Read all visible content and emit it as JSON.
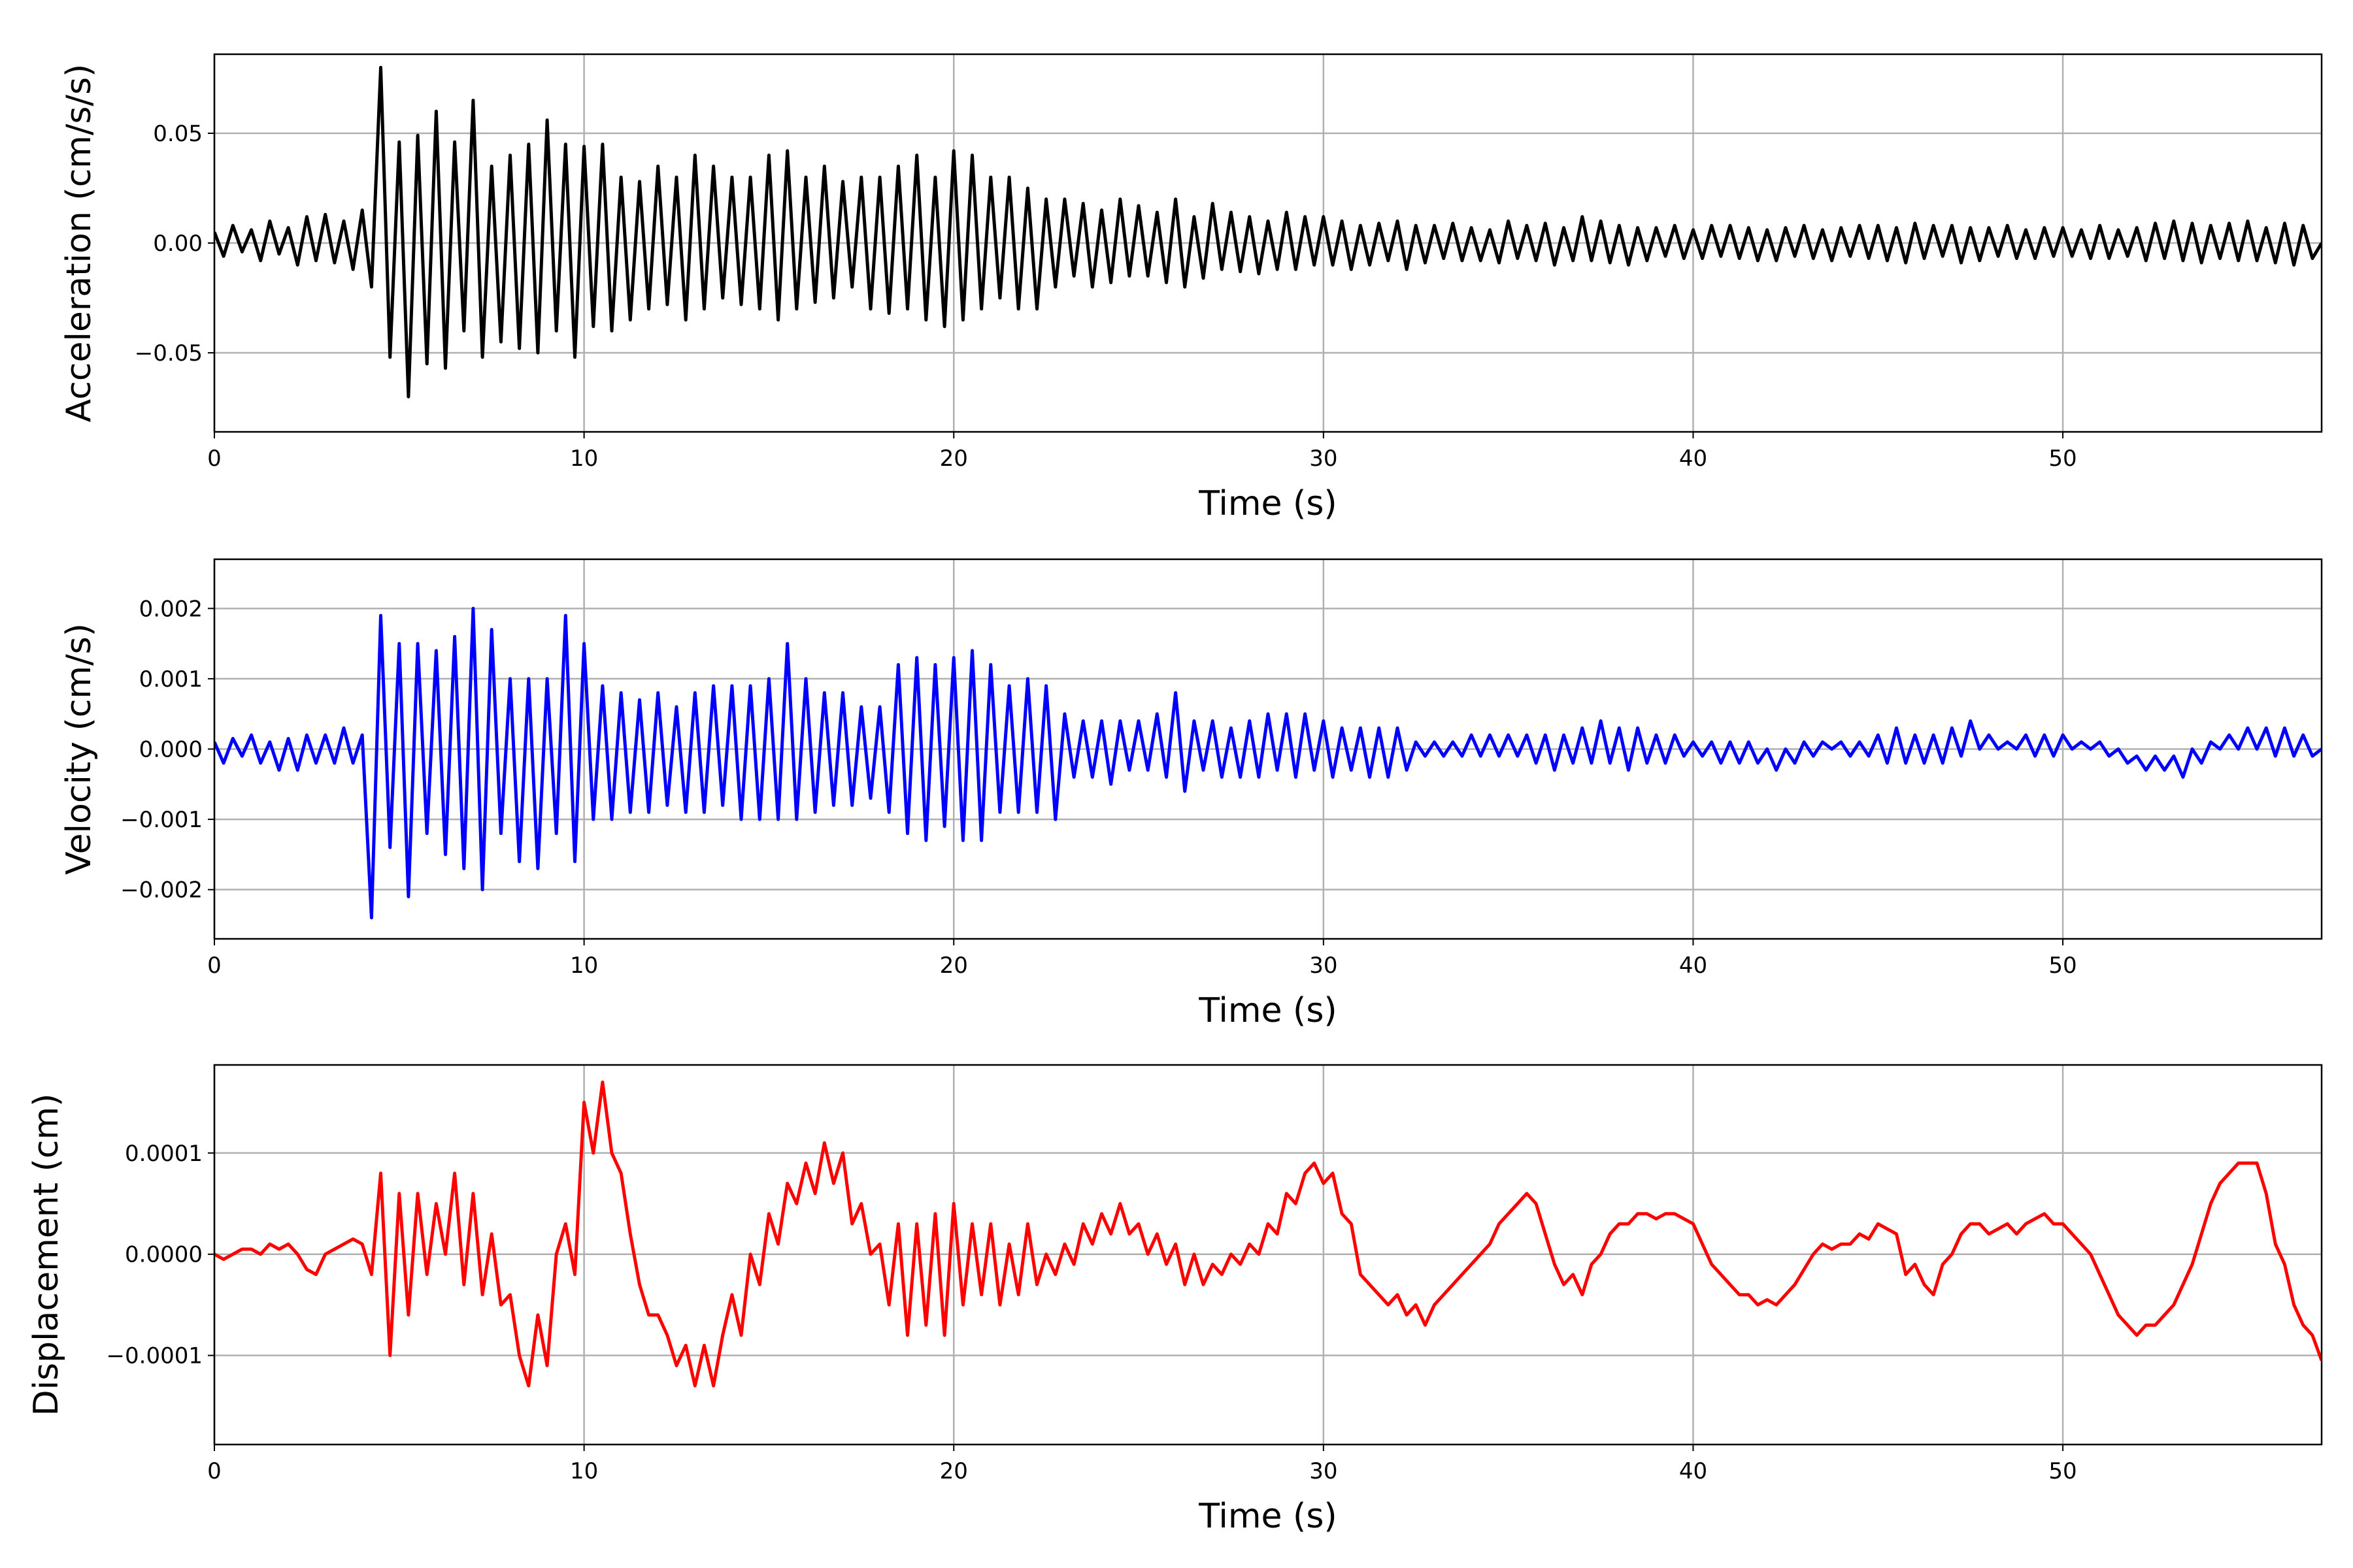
{
  "chart_data": [
    {
      "type": "line",
      "title": "",
      "xlabel": "Time (s)",
      "ylabel": "Acceleration (cm/s/s)",
      "color": "#000000",
      "xlim": [
        0,
        57
      ],
      "ylim": [
        -0.086,
        0.086
      ],
      "grid": true,
      "xticks": [
        0,
        10,
        20,
        30,
        40,
        50
      ],
      "xtick_labels": [
        "0",
        "10",
        "20",
        "30",
        "40",
        "50"
      ],
      "yticks": [
        -0.05,
        0,
        0.05
      ],
      "ytick_labels": [
        "−0.05",
        "0.00",
        "0.05"
      ],
      "t_start": 0,
      "dt": 0.25,
      "values": [
        0.005,
        -0.006,
        0.008,
        -0.004,
        0.006,
        -0.008,
        0.01,
        -0.005,
        0.007,
        -0.01,
        0.012,
        -0.008,
        0.013,
        -0.009,
        0.01,
        -0.012,
        0.015,
        -0.02,
        0.08,
        -0.052,
        0.046,
        -0.07,
        0.049,
        -0.055,
        0.06,
        -0.057,
        0.046,
        -0.04,
        0.065,
        -0.052,
        0.035,
        -0.045,
        0.04,
        -0.048,
        0.045,
        -0.05,
        0.056,
        -0.04,
        0.045,
        -0.052,
        0.044,
        -0.038,
        0.045,
        -0.04,
        0.03,
        -0.035,
        0.028,
        -0.03,
        0.035,
        -0.028,
        0.03,
        -0.035,
        0.04,
        -0.03,
        0.035,
        -0.025,
        0.03,
        -0.028,
        0.03,
        -0.03,
        0.04,
        -0.035,
        0.042,
        -0.03,
        0.03,
        -0.027,
        0.035,
        -0.025,
        0.028,
        -0.02,
        0.03,
        -0.03,
        0.03,
        -0.032,
        0.035,
        -0.03,
        0.04,
        -0.035,
        0.03,
        -0.038,
        0.042,
        -0.035,
        0.04,
        -0.03,
        0.03,
        -0.025,
        0.03,
        -0.03,
        0.025,
        -0.03,
        0.02,
        -0.02,
        0.02,
        -0.015,
        0.018,
        -0.02,
        0.015,
        -0.018,
        0.02,
        -0.015,
        0.017,
        -0.015,
        0.014,
        -0.018,
        0.02,
        -0.02,
        0.012,
        -0.016,
        0.018,
        -0.012,
        0.014,
        -0.013,
        0.012,
        -0.014,
        0.01,
        -0.012,
        0.014,
        -0.012,
        0.012,
        -0.01,
        0.012,
        -0.01,
        0.01,
        -0.012,
        0.008,
        -0.01,
        0.009,
        -0.008,
        0.01,
        -0.012,
        0.008,
        -0.009,
        0.008,
        -0.007,
        0.009,
        -0.008,
        0.007,
        -0.008,
        0.006,
        -0.009,
        0.01,
        -0.007,
        0.008,
        -0.008,
        0.009,
        -0.01,
        0.007,
        -0.008,
        0.012,
        -0.008,
        0.01,
        -0.009,
        0.008,
        -0.01,
        0.007,
        -0.008,
        0.007,
        -0.006,
        0.008,
        -0.007,
        0.006,
        -0.007,
        0.008,
        -0.006,
        0.008,
        -0.007,
        0.007,
        -0.008,
        0.006,
        -0.008,
        0.007,
        -0.006,
        0.008,
        -0.007,
        0.006,
        -0.008,
        0.007,
        -0.006,
        0.008,
        -0.007,
        0.008,
        -0.008,
        0.007,
        -0.009,
        0.009,
        -0.007,
        0.008,
        -0.006,
        0.008,
        -0.009,
        0.007,
        -0.008,
        0.007,
        -0.006,
        0.008,
        -0.007,
        0.006,
        -0.007,
        0.007,
        -0.006,
        0.007,
        -0.006,
        0.006,
        -0.007,
        0.008,
        -0.007,
        0.006,
        -0.006,
        0.007,
        -0.008,
        0.009,
        -0.007,
        0.01,
        -0.008,
        0.009,
        -0.009,
        0.008,
        -0.007,
        0.009,
        -0.008,
        0.01,
        -0.008,
        0.007,
        -0.009,
        0.009,
        -0.01,
        0.008,
        -0.007,
        0.0
      ]
    },
    {
      "type": "line",
      "title": "",
      "xlabel": "Time (s)",
      "ylabel": "Velocity (cm/s)",
      "color": "#0000ff",
      "xlim": [
        0,
        57
      ],
      "ylim": [
        -0.0027,
        0.0027
      ],
      "grid": true,
      "xticks": [
        0,
        10,
        20,
        30,
        40,
        50
      ],
      "xtick_labels": [
        "0",
        "10",
        "20",
        "30",
        "40",
        "50"
      ],
      "yticks": [
        -0.002,
        -0.001,
        0,
        0.001,
        0.002
      ],
      "ytick_labels": [
        "−0.002",
        "−0.001",
        "0.000",
        "0.001",
        "0.002"
      ],
      "t_start": 0,
      "dt": 0.25,
      "values": [
        0.0001,
        -0.0002,
        0.00015,
        -0.0001,
        0.0002,
        -0.0002,
        0.0001,
        -0.0003,
        0.00015,
        -0.0003,
        0.0002,
        -0.0002,
        0.0002,
        -0.0002,
        0.0003,
        -0.0002,
        0.0002,
        -0.0024,
        0.0019,
        -0.0014,
        0.0015,
        -0.0021,
        0.0015,
        -0.0012,
        0.0014,
        -0.0015,
        0.0016,
        -0.0017,
        0.002,
        -0.002,
        0.0017,
        -0.0012,
        0.001,
        -0.0016,
        0.001,
        -0.0017,
        0.001,
        -0.0012,
        0.0019,
        -0.0016,
        0.0015,
        -0.001,
        0.0009,
        -0.001,
        0.0008,
        -0.0009,
        0.0007,
        -0.0009,
        0.0008,
        -0.0008,
        0.0006,
        -0.0009,
        0.0008,
        -0.0009,
        0.0009,
        -0.0008,
        0.0009,
        -0.001,
        0.0009,
        -0.001,
        0.001,
        -0.001,
        0.0015,
        -0.001,
        0.001,
        -0.0009,
        0.0008,
        -0.0008,
        0.0008,
        -0.0008,
        0.0006,
        -0.0007,
        0.0006,
        -0.0009,
        0.0012,
        -0.0012,
        0.0013,
        -0.0013,
        0.0012,
        -0.0011,
        0.0013,
        -0.0013,
        0.0014,
        -0.0013,
        0.0012,
        -0.0009,
        0.0009,
        -0.0009,
        0.001,
        -0.0009,
        0.0009,
        -0.001,
        0.0005,
        -0.0004,
        0.0004,
        -0.0004,
        0.0004,
        -0.0005,
        0.0004,
        -0.0003,
        0.0004,
        -0.0003,
        0.0005,
        -0.0004,
        0.0008,
        -0.0006,
        0.0004,
        -0.0003,
        0.0004,
        -0.0004,
        0.0003,
        -0.0004,
        0.0004,
        -0.0004,
        0.0005,
        -0.0003,
        0.0005,
        -0.0004,
        0.0005,
        -0.0003,
        0.0004,
        -0.0004,
        0.0003,
        -0.0003,
        0.0003,
        -0.0004,
        0.0003,
        -0.0004,
        0.0003,
        -0.0003,
        0.0001,
        -0.0001,
        0.0001,
        -0.0001,
        0.0001,
        -0.0001,
        0.0002,
        -0.0001,
        0.0002,
        -0.0001,
        0.0002,
        -0.0001,
        0.0002,
        -0.0002,
        0.0002,
        -0.0003,
        0.0002,
        -0.0002,
        0.0003,
        -0.0002,
        0.0004,
        -0.0002,
        0.0003,
        -0.0003,
        0.0003,
        -0.0002,
        0.0002,
        -0.0002,
        0.0002,
        -0.0001,
        0.0001,
        -0.0001,
        0.0001,
        -0.0002,
        0.0001,
        -0.0002,
        0.0001,
        -0.0002,
        0.0,
        -0.0003,
        0.0,
        -0.0002,
        0.0001,
        -0.0001,
        0.0001,
        0.0,
        0.0001,
        -0.0001,
        0.0001,
        -0.0001,
        0.0002,
        -0.0002,
        0.0003,
        -0.0002,
        0.0002,
        -0.0002,
        0.0002,
        -0.0002,
        0.0003,
        -0.0001,
        0.0004,
        0.0,
        0.0002,
        0.0,
        0.0001,
        0.0,
        0.0002,
        -0.0001,
        0.0002,
        -0.0001,
        0.0002,
        0.0,
        0.0001,
        0.0,
        0.0001,
        -0.0001,
        0.0,
        -0.0002,
        -0.0001,
        -0.0003,
        -0.0001,
        -0.0003,
        -0.0001,
        -0.0004,
        0.0,
        -0.0002,
        0.0001,
        0.0,
        0.0002,
        0.0,
        0.0003,
        0.0,
        0.0003,
        -0.0001,
        0.0003,
        -0.0001,
        0.0002,
        -0.0001,
        0.0
      ]
    },
    {
      "type": "line",
      "title": "",
      "xlabel": "Time (s)",
      "ylabel": "Displacement (cm)",
      "color": "#ff0000",
      "xlim": [
        0,
        57
      ],
      "ylim": [
        -0.000188,
        0.000187
      ],
      "grid": true,
      "xticks": [
        0,
        10,
        20,
        30,
        40,
        50
      ],
      "xtick_labels": [
        "0",
        "10",
        "20",
        "30",
        "40",
        "50"
      ],
      "yticks": [
        -0.0001,
        0,
        0.0001
      ],
      "ytick_labels": [
        "−0.0001",
        "0.0000",
        "0.0001"
      ],
      "t_start": 0,
      "dt": 0.25,
      "values": [
        0,
        -5e-06,
        0,
        5e-06,
        5e-06,
        0,
        1e-05,
        5e-06,
        1e-05,
        0,
        -1.5e-05,
        -2e-05,
        0,
        5e-06,
        1e-05,
        1.5e-05,
        1e-05,
        -2e-05,
        8e-05,
        -0.0001,
        6e-05,
        -6e-05,
        6e-05,
        -2e-05,
        5e-05,
        0,
        8e-05,
        -3e-05,
        6e-05,
        -4e-05,
        2e-05,
        -5e-05,
        -4e-05,
        -0.0001,
        -0.00013,
        -6e-05,
        -0.00011,
        0,
        3e-05,
        -2e-05,
        0.00015,
        0.0001,
        0.00017,
        0.0001,
        8e-05,
        2e-05,
        -3e-05,
        -6e-05,
        -6e-05,
        -8e-05,
        -0.00011,
        -9e-05,
        -0.00013,
        -9e-05,
        -0.00013,
        -8e-05,
        -4e-05,
        -8e-05,
        0,
        -3e-05,
        4e-05,
        1e-05,
        7e-05,
        5e-05,
        9e-05,
        6e-05,
        0.00011,
        7e-05,
        0.0001,
        3e-05,
        5e-05,
        0,
        1e-05,
        -5e-05,
        3e-05,
        -8e-05,
        3e-05,
        -7e-05,
        4e-05,
        -8e-05,
        5e-05,
        -5e-05,
        3e-05,
        -4e-05,
        3e-05,
        -5e-05,
        1e-05,
        -4e-05,
        3e-05,
        -3e-05,
        0,
        -2e-05,
        1e-05,
        -1e-05,
        3e-05,
        1e-05,
        4e-05,
        2e-05,
        5e-05,
        2e-05,
        3e-05,
        0,
        2e-05,
        -1e-05,
        1e-05,
        -3e-05,
        0,
        -3e-05,
        -1e-05,
        -2e-05,
        0,
        -1e-05,
        1e-05,
        0,
        3e-05,
        2e-05,
        6e-05,
        5e-05,
        8e-05,
        9e-05,
        7e-05,
        8e-05,
        4e-05,
        3e-05,
        -2e-05,
        -3e-05,
        -4e-05,
        -5e-05,
        -4e-05,
        -6e-05,
        -5e-05,
        -7e-05,
        -5e-05,
        -4e-05,
        -3e-05,
        -2e-05,
        -1e-05,
        0,
        1e-05,
        3e-05,
        4e-05,
        5e-05,
        6e-05,
        5e-05,
        2e-05,
        -1e-05,
        -3e-05,
        -2e-05,
        -4e-05,
        -1e-05,
        0,
        2e-05,
        3e-05,
        3e-05,
        4e-05,
        4e-05,
        3.5e-05,
        4e-05,
        4e-05,
        3.5e-05,
        3e-05,
        1e-05,
        -1e-05,
        -2e-05,
        -3e-05,
        -4e-05,
        -4e-05,
        -5e-05,
        -4.5e-05,
        -5e-05,
        -4e-05,
        -3e-05,
        -1.5e-05,
        0,
        1e-05,
        5e-06,
        1e-05,
        1e-05,
        2e-05,
        1.5e-05,
        3e-05,
        2.5e-05,
        2e-05,
        -2e-05,
        -1e-05,
        -3e-05,
        -4e-05,
        -1e-05,
        0,
        2e-05,
        3e-05,
        3e-05,
        2e-05,
        2.5e-05,
        3e-05,
        2e-05,
        3e-05,
        3.5e-05,
        4e-05,
        3e-05,
        3e-05,
        2e-05,
        1e-05,
        0,
        -2e-05,
        -4e-05,
        -6e-05,
        -7e-05,
        -8e-05,
        -7e-05,
        -7e-05,
        -6e-05,
        -5e-05,
        -3e-05,
        -1e-05,
        2e-05,
        5e-05,
        7e-05,
        8e-05,
        9e-05,
        9e-05,
        9e-05,
        6e-05,
        1e-05,
        -1e-05,
        -5e-05,
        -7e-05,
        -8e-05,
        -0.000105
      ]
    }
  ]
}
